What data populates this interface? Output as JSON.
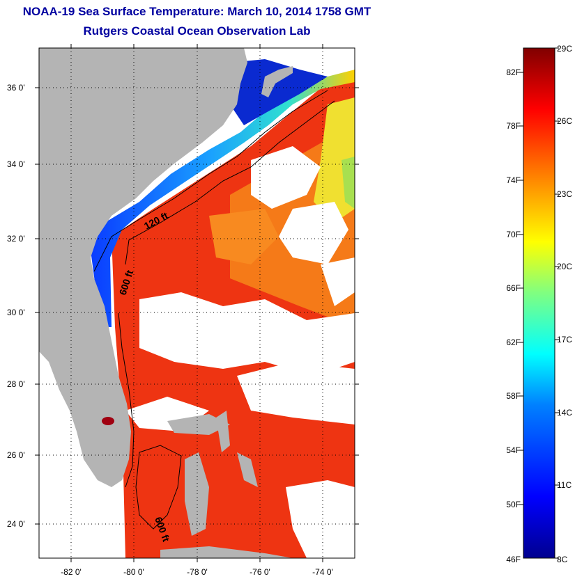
{
  "title": "NOAA-19 Sea Surface Temperature:  March 10, 2014 1758 GMT",
  "subtitle": "Rutgers Coastal Ocean Observation Lab",
  "map": {
    "lat_labels": [
      "36 0'",
      "34 0'",
      "32 0'",
      "30 0'",
      "28 0'",
      "26 0'",
      "24 0'"
    ],
    "lon_labels": [
      "-82 0'",
      "-80 0'",
      "-78 0'",
      "-76 0'",
      "-74 0'"
    ],
    "lat_range": [
      23,
      37
    ],
    "lon_range": [
      -83,
      -73
    ],
    "contour_labels": [
      "120 ft",
      "600 ft",
      "600 ft"
    ],
    "land_color": "#b4b4b4",
    "cloud_color": "#ffffff"
  },
  "colorbar": {
    "fahrenheit_labels": [
      "82F",
      "78F",
      "74F",
      "70F",
      "66F",
      "62F",
      "58F",
      "54F",
      "50F",
      "46F"
    ],
    "celsius_labels": [
      "29C",
      "26C",
      "23C",
      "20C",
      "17C",
      "14C",
      "11C",
      "8C"
    ],
    "colors": [
      "#00008f",
      "#0000ff",
      "#0080ff",
      "#00ffff",
      "#80ff80",
      "#ffff00",
      "#ff8000",
      "#ff0000",
      "#800000"
    ]
  }
}
